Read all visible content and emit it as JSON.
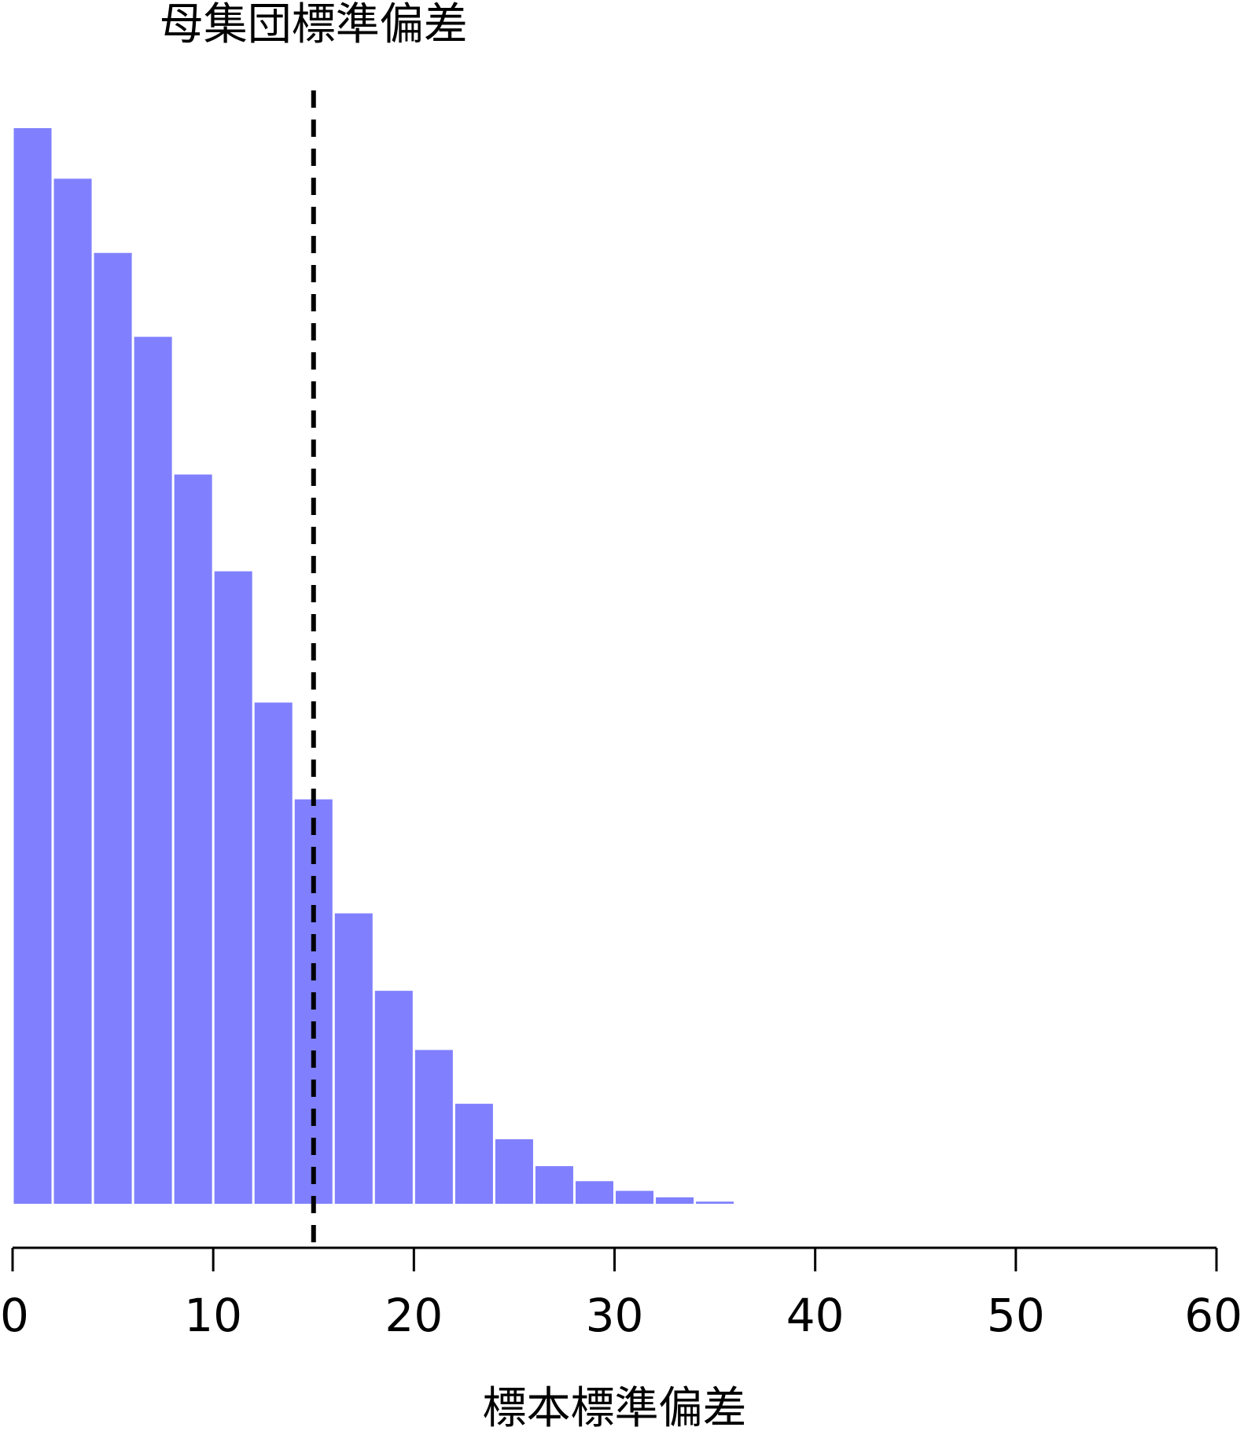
{
  "chart_data": {
    "type": "bar",
    "title": "",
    "xlabel": "標本標準偏差",
    "ylabel": "",
    "xlim": [
      0,
      60
    ],
    "bin_edges": [
      0,
      2,
      4,
      6,
      8,
      10,
      12,
      14,
      16,
      18,
      20,
      22,
      24,
      26,
      28,
      30,
      32,
      34,
      36
    ],
    "values": [
      1000,
      953,
      884,
      806,
      678,
      588,
      466,
      376,
      270,
      198,
      143,
      93,
      60,
      35,
      21,
      12,
      6,
      2
    ],
    "ylim": [
      0,
      1000
    ],
    "x_ticks": [
      "0",
      "10",
      "20",
      "30",
      "40",
      "50",
      "60"
    ],
    "x_tick_values": [
      0,
      10,
      20,
      30,
      40,
      50,
      60
    ],
    "grid": false,
    "legend": "none",
    "bar_color": "#8080ff",
    "reference_line": {
      "x": 15,
      "label": "母集団標準偏差",
      "style": "dashed",
      "color": "#000000"
    }
  }
}
